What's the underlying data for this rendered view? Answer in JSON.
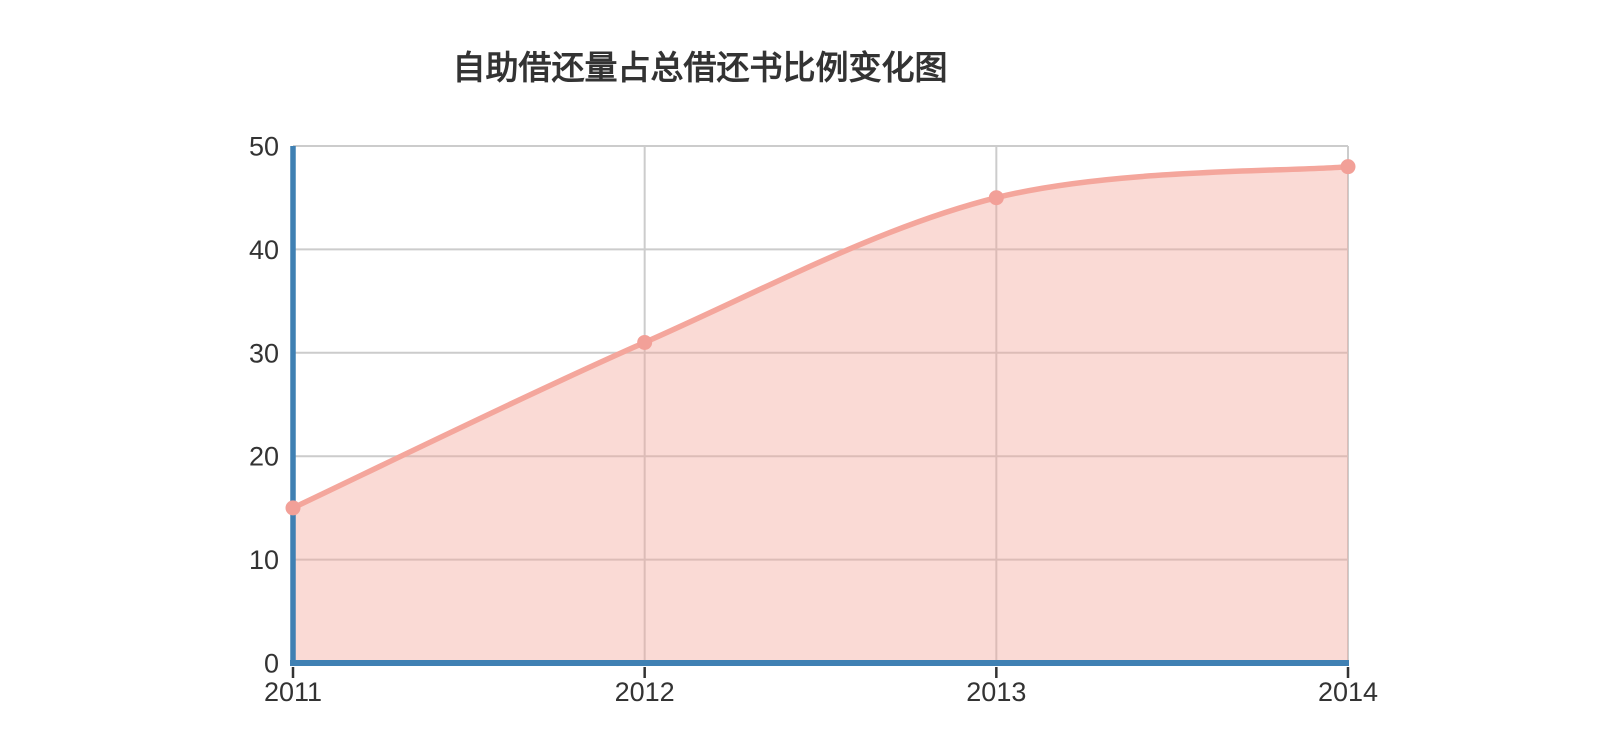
{
  "page": {
    "background": "#ffffff"
  },
  "chart_data": {
    "type": "area",
    "title": "自助借还量占总借还书比例变化图",
    "categories": [
      "2011",
      "2012",
      "2013",
      "2014"
    ],
    "values": [
      15,
      31,
      45,
      48
    ],
    "xlabel": "",
    "ylabel": "",
    "ylim": [
      0,
      50
    ],
    "yticks": [
      0,
      10,
      20,
      30,
      40,
      50
    ],
    "grid": true,
    "legend_position": "none",
    "smooth": true,
    "colors": {
      "line": "#f4a69c",
      "marker": "#f2a098",
      "area_fill": "rgba(244, 166, 156, 0.42)",
      "axis": "#3f80b3",
      "gridline": "#cccccc",
      "tick": "#333333",
      "label_text": "#333333",
      "title_text": "#333333"
    }
  }
}
